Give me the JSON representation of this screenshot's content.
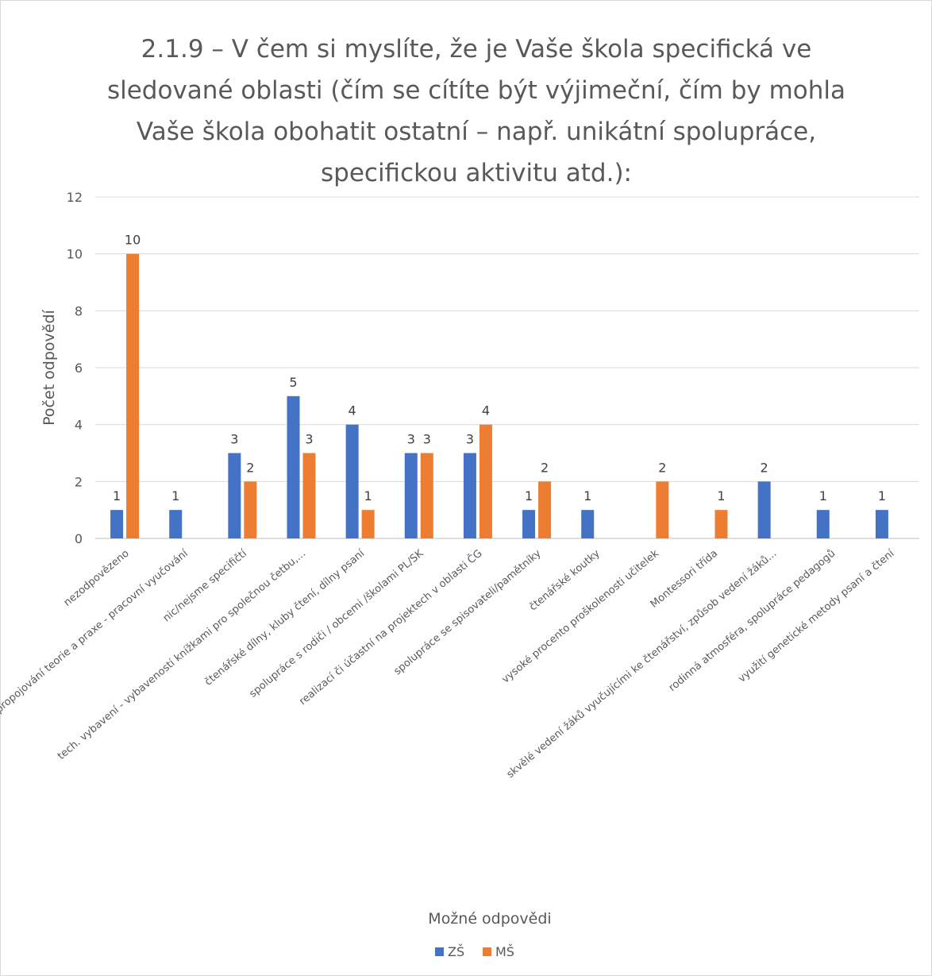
{
  "chart_data": {
    "type": "bar",
    "title_lines": [
      "2.1.9 – V čem si myslíte, že je Vaše škola specifická ve",
      "sledované oblasti (čím se cítíte být výjimeční, čím by mohla",
      "Vaše škola obohatit ostatní – např. unikátní spolupráce,",
      "specifickou aktivitu atd.):"
    ],
    "xlabel": "Možné odpovědi",
    "ylabel": "Počet odpovědí",
    "ylim": [
      0,
      12
    ],
    "yticks": [
      0,
      2,
      4,
      6,
      8,
      10,
      12
    ],
    "grid": true,
    "legend_position": "bottom",
    "categories": [
      "nezodpovězeno",
      "propojování teorie a praxe - pracovní vyučování",
      "nic/nejsme specifičtí",
      "tech. vybavení - vybaveností knížkami pro společnou četbu,...",
      "čtenářské dílny, kluby čtení, dílny psaní",
      "spolupráce s rodiči / obcemi /školami PL/SK",
      "realizací či účastní na projektech v oblasti ČG",
      "spolupráce se spisovateli/pamětníky",
      "čtenářské koutky",
      "vysoké procento proškolenosti učitelek",
      "Montessori třída",
      "skvělé vedení žáků vyučujícími ke čtenářství, způsob vedení žáků...",
      "rodinná atmosféra, spolupráce pedagogů",
      "využití genetické metody psaní a čtení"
    ],
    "series": [
      {
        "name": "ZŠ",
        "color": "#4472C4",
        "values": [
          1,
          1,
          3,
          5,
          4,
          3,
          3,
          1,
          1,
          null,
          null,
          2,
          1,
          1
        ]
      },
      {
        "name": "MŠ",
        "color": "#ED7D31",
        "values": [
          10,
          null,
          2,
          3,
          1,
          3,
          4,
          2,
          null,
          2,
          1,
          null,
          null,
          null
        ]
      }
    ]
  }
}
